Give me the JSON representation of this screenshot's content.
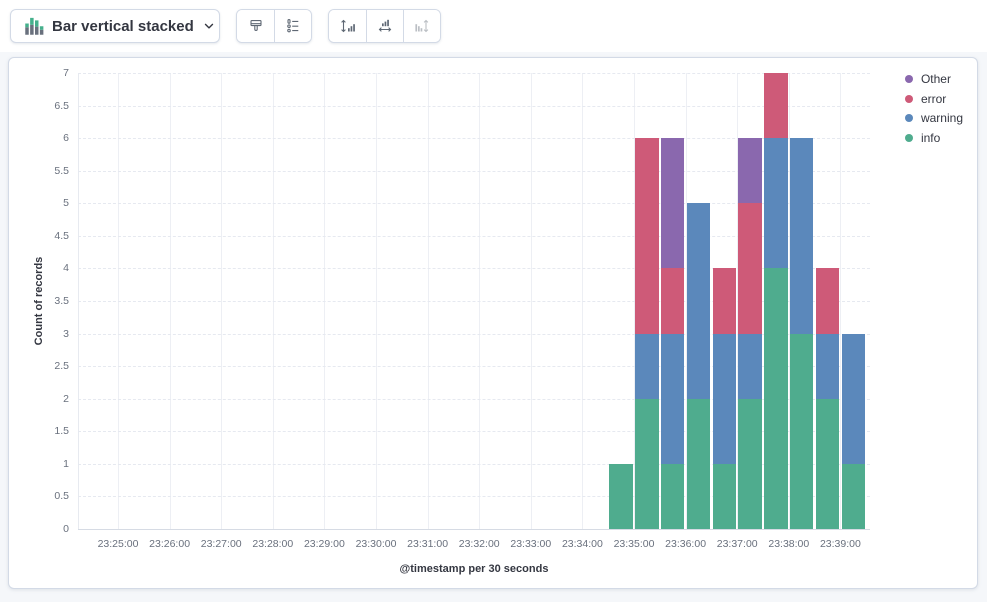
{
  "toolbar": {
    "chart_type": {
      "label": "Bar vertical stacked"
    }
  },
  "chart_data": {
    "type": "bar",
    "stacked": true,
    "orientation": "vertical",
    "xlabel": "@timestamp per 30 seconds",
    "ylabel": "Count of records",
    "ylim": [
      0,
      7
    ],
    "y_tick_step": 0.5,
    "grid": true,
    "x_axis_tick_labels": [
      "23:25:00",
      "23:26:00",
      "23:27:00",
      "23:28:00",
      "23:29:00",
      "23:30:00",
      "23:31:00",
      "23:32:00",
      "23:33:00",
      "23:34:00",
      "23:35:00",
      "23:36:00",
      "23:37:00",
      "23:38:00",
      "23:39:00"
    ],
    "bucket_seconds": 30,
    "categories": [
      "23:34:30",
      "23:35:00",
      "23:35:30",
      "23:36:00",
      "23:36:30",
      "23:37:00",
      "23:37:30",
      "23:38:00",
      "23:38:30",
      "23:39:00"
    ],
    "series": [
      {
        "name": "info",
        "color": "#4FAC8E",
        "values": [
          1,
          2,
          1,
          2,
          1,
          2,
          4,
          3,
          2,
          1
        ]
      },
      {
        "name": "warning",
        "color": "#5B88BB",
        "values": [
          0,
          1,
          2,
          3,
          2,
          1,
          2,
          3,
          1,
          2
        ]
      },
      {
        "name": "error",
        "color": "#CE5A78",
        "values": [
          0,
          3,
          1,
          0,
          1,
          2,
          1,
          0,
          1,
          0
        ]
      },
      {
        "name": "Other",
        "color": "#8A68AE",
        "values": [
          0,
          0,
          2,
          0,
          0,
          1,
          0,
          0,
          0,
          0
        ]
      }
    ],
    "legend": {
      "position": "right",
      "items_top_to_bottom": [
        "Other",
        "error",
        "warning",
        "info"
      ]
    }
  }
}
